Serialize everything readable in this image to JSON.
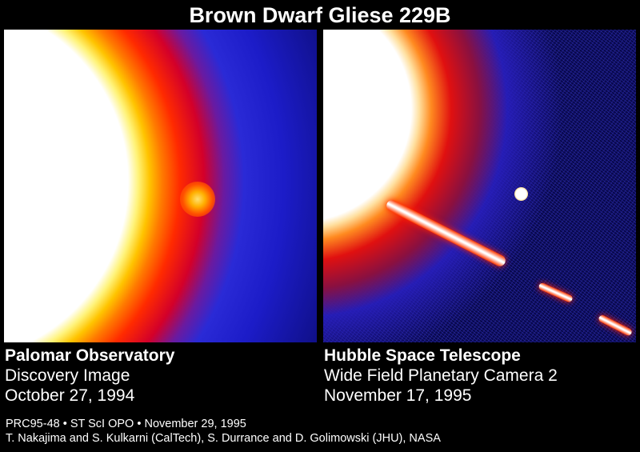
{
  "title": "Brown Dwarf Gliese 229B",
  "left_panel": {
    "heading": "Palomar Observatory",
    "line1": "Discovery Image",
    "line2": "October 27, 1994"
  },
  "right_panel": {
    "heading": "Hubble Space Telescope",
    "line1": "Wide Field Planetary Camera 2",
    "line2": "November 17, 1995"
  },
  "credits": {
    "line1": "PRC95-48 • ST ScI OPO • November 29, 1995",
    "line2": "T. Nakajima and S. Kulkarni (CalTech), S. Durrance and D. Golimowski (JHU), NASA"
  }
}
